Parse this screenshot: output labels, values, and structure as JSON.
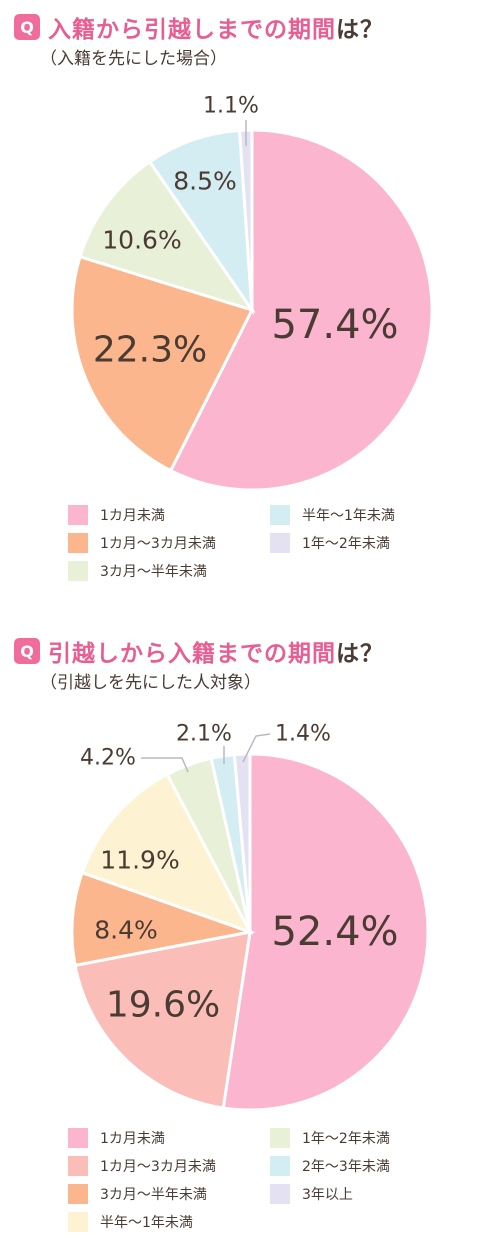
{
  "charts": [
    {
      "q_badge": "Q",
      "title_pink": "入籍から引越しまでの期間",
      "title_suffix": "は？",
      "subtitle": "（入籍を先にした場合）"
    },
    {
      "q_badge": "Q",
      "title_pink": "引越しから入籍までの期間",
      "title_suffix": "は？",
      "subtitle": "（引越しを先にした人対象）"
    }
  ],
  "chart_data": [
    {
      "type": "pie",
      "title": "入籍から引越しまでの期間は？",
      "subtitle": "（入籍を先にした場合）",
      "categories": [
        "1カ月未満",
        "1カ月〜3カ月未満",
        "3カ月〜半年未満",
        "半年〜1年未満",
        "1年〜2年未満"
      ],
      "values": [
        57.4,
        22.3,
        10.6,
        8.5,
        1.1
      ],
      "labels": [
        "57.4%",
        "22.3%",
        "10.6%",
        "8.5%",
        "1.1%"
      ],
      "colors": [
        "#fbb5cf",
        "#fbb68d",
        "#e8f0d8",
        "#d4edf3",
        "#e3e1f2"
      ],
      "legend_position": "bottom"
    },
    {
      "type": "pie",
      "title": "引越しから入籍までの期間は？",
      "subtitle": "（引越しを先にした人対象）",
      "categories": [
        "1カ月未満",
        "1カ月〜3カ月未満",
        "3カ月〜半年未満",
        "半年〜1年未満",
        "1年〜2年未満",
        "2年〜3年未満",
        "3年以上"
      ],
      "values": [
        52.4,
        19.6,
        8.4,
        11.9,
        4.2,
        2.1,
        1.4
      ],
      "labels": [
        "52.4%",
        "19.6%",
        "8.4%",
        "11.9%",
        "4.2%",
        "2.1%",
        "1.4%"
      ],
      "colors": [
        "#fbb5cf",
        "#fbbdb8",
        "#fbb68d",
        "#fdf3d3",
        "#e8f0d8",
        "#d4edf3",
        "#e3e1f2"
      ],
      "legend_position": "bottom"
    }
  ]
}
